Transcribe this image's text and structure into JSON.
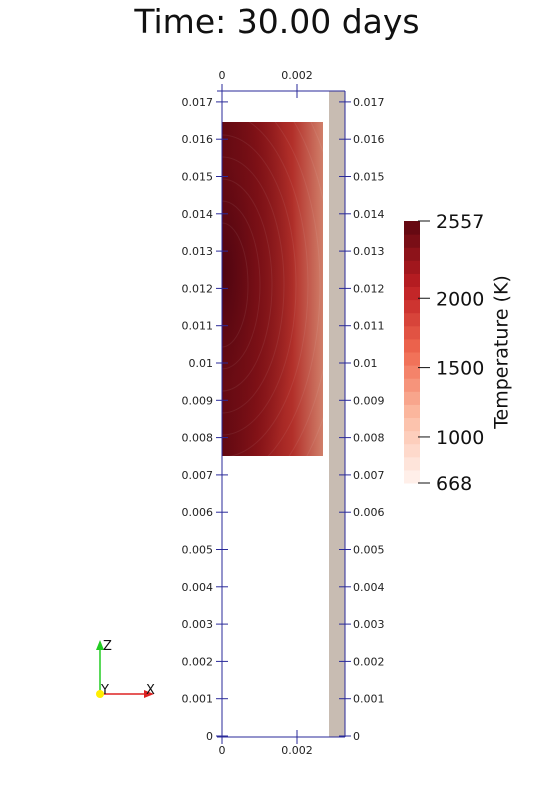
{
  "title": "Time: 30.00 days",
  "axis": {
    "left_ticks": [
      "0.017",
      "0.016",
      "0.015",
      "0.014",
      "0.013",
      "0.012",
      "0.011",
      "0.01",
      "0.009",
      "0.008",
      "0.007",
      "0.006",
      "0.005",
      "0.004",
      "0.003",
      "0.002",
      "0.001",
      "0"
    ],
    "right_ticks": [
      "0.017",
      "0.016",
      "0.015",
      "0.014",
      "0.013",
      "0.012",
      "0.011",
      "0.01",
      "0.009",
      "0.008",
      "0.007",
      "0.006",
      "0.005",
      "0.004",
      "0.003",
      "0.002",
      "0.001",
      "0"
    ],
    "top_ticks": [
      "0",
      "0.002"
    ],
    "bottom_ticks": [
      "0",
      "0.002"
    ],
    "axis_color": "#2a2a9a"
  },
  "colorbar": {
    "title": "Temperature (K)",
    "tick_labels": [
      "2557",
      "2000",
      "1500",
      "1000",
      "668"
    ],
    "tick_values": [
      2557,
      2000,
      1500,
      1000,
      668
    ],
    "min": 668,
    "max": 2557
  },
  "orientation": {
    "labels": [
      "Z",
      "Y",
      "X"
    ],
    "colors": {
      "z": "#22cc22",
      "y": "#ffee00",
      "x": "#dd2222"
    }
  },
  "colors": {
    "cladding": "#c8bcb2",
    "hot": "#5c0710",
    "cool": "#fff2ee"
  }
}
